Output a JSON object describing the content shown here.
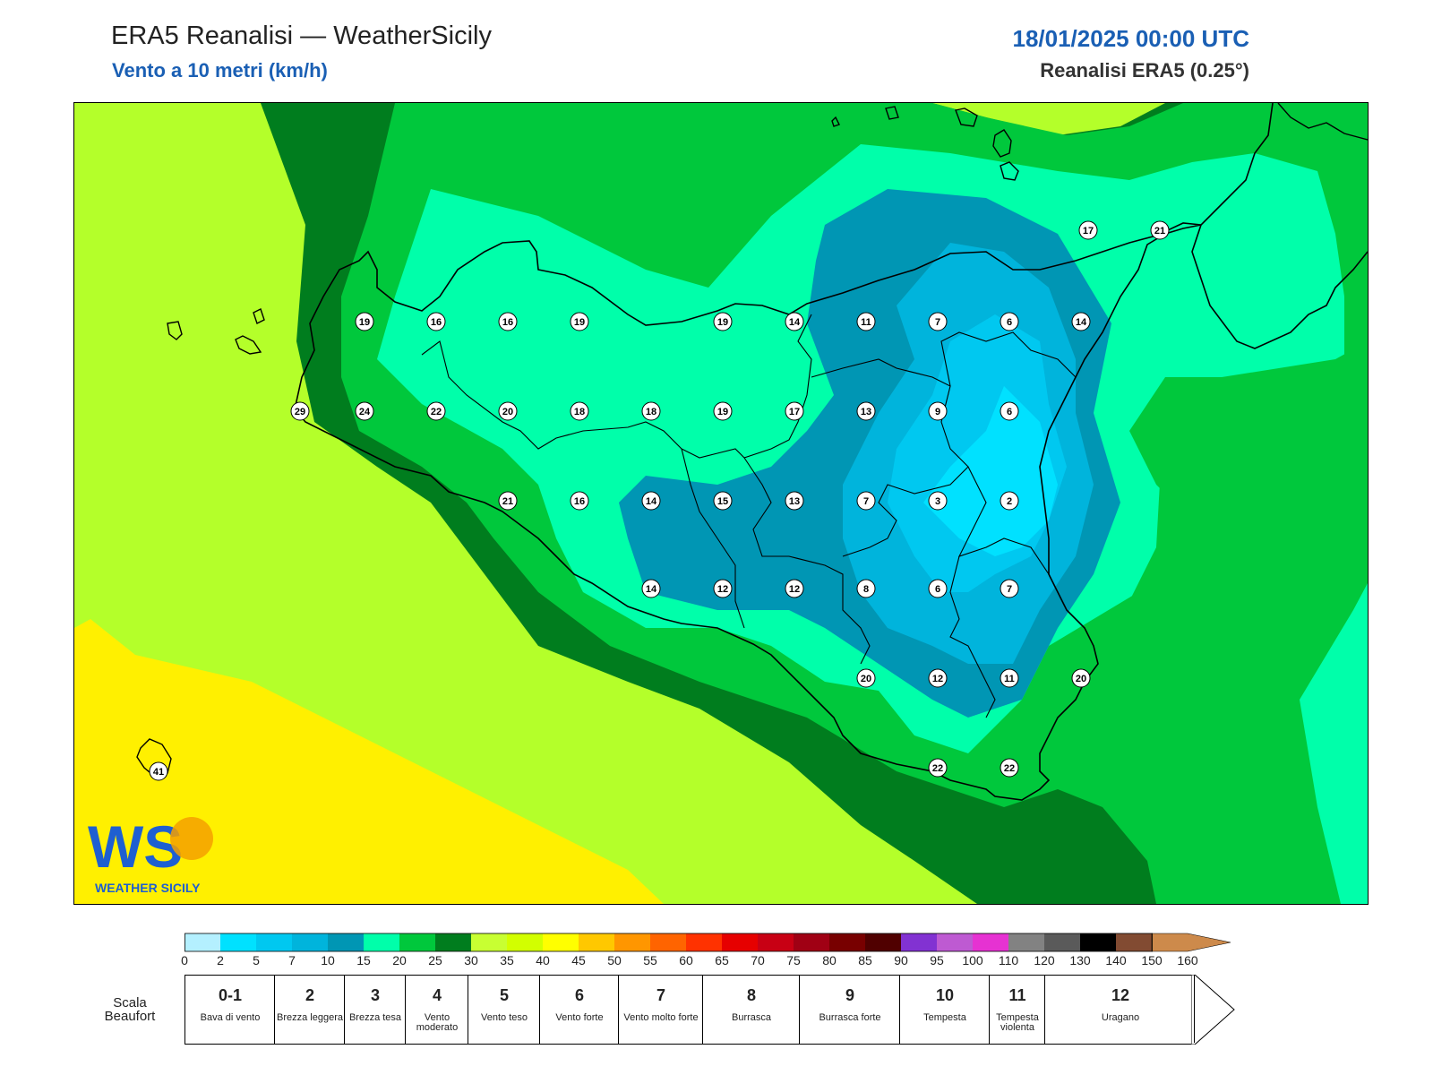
{
  "header": {
    "title": "ERA5 Reanalisi — WeatherSicily",
    "subtitle": "Vento a 10 metri (km/h)",
    "datetime": "18/01/2025 00:00 UTC",
    "source": "Reanalisi ERA5 (0.25°)"
  },
  "logo": {
    "text": "WEATHER SICILY",
    "monogram": "WS"
  },
  "stations": [
    {
      "v": "19",
      "c": 0
    },
    {
      "v": "16",
      "c": 1
    },
    {
      "v": "16",
      "c": 2
    },
    {
      "v": "19",
      "c": 3
    },
    {
      "v": "19",
      "c": 5
    },
    {
      "v": "14",
      "c": 6
    },
    {
      "v": "11",
      "c": 7
    },
    {
      "v": "7",
      "c": 8
    },
    {
      "v": "6",
      "c": 9
    },
    {
      "v": "14",
      "c": 10
    },
    {
      "v": "29",
      "c": -1
    },
    {
      "v": "24",
      "c": 0
    },
    {
      "v": "22",
      "c": 1
    },
    {
      "v": "20",
      "c": 2
    },
    {
      "v": "18",
      "c": 3
    },
    {
      "v": "18",
      "c": 4
    },
    {
      "v": "19",
      "c": 5
    },
    {
      "v": "17",
      "c": 6
    },
    {
      "v": "13",
      "c": 7
    },
    {
      "v": "9",
      "c": 8
    },
    {
      "v": "6",
      "c": 9
    },
    {
      "v": "21",
      "c": 2
    },
    {
      "v": "16",
      "c": 3
    },
    {
      "v": "14",
      "c": 4
    },
    {
      "v": "15",
      "c": 5
    },
    {
      "v": "13",
      "c": 6
    },
    {
      "v": "7",
      "c": 7
    },
    {
      "v": "3",
      "c": 8
    },
    {
      "v": "2",
      "c": 9
    },
    {
      "v": "14",
      "c": 4
    },
    {
      "v": "12",
      "c": 5
    },
    {
      "v": "12",
      "c": 6
    },
    {
      "v": "8",
      "c": 7
    },
    {
      "v": "6",
      "c": 8
    },
    {
      "v": "7",
      "c": 9
    },
    {
      "v": "20",
      "c": 7
    },
    {
      "v": "12",
      "c": 8
    },
    {
      "v": "11",
      "c": 9
    },
    {
      "v": "20",
      "c": 10
    },
    {
      "v": "22",
      "c": 8
    },
    {
      "v": "22",
      "c": 9
    },
    {
      "v": "17",
      "c": 10
    },
    {
      "v": "21",
      "c": 11
    },
    {
      "v": "41",
      "c": -3
    }
  ],
  "colorbar": {
    "ticks": [
      "0",
      "2",
      "5",
      "7",
      "10",
      "15",
      "20",
      "25",
      "30",
      "35",
      "40",
      "45",
      "50",
      "55",
      "60",
      "65",
      "70",
      "75",
      "80",
      "85",
      "90",
      "95",
      "100",
      "110",
      "120",
      "130",
      "140",
      "150",
      "160"
    ],
    "colors": [
      "#b4f0ff",
      "#00e1ff",
      "#00c8f0",
      "#00b4dc",
      "#0096b4",
      "#00ffaa",
      "#00c83c",
      "#007d1e",
      "#c8ff32",
      "#d2ff00",
      "#ffff00",
      "#ffc800",
      "#ff9600",
      "#ff6400",
      "#ff3200",
      "#e60000",
      "#c80014",
      "#a00014",
      "#780000",
      "#500000",
      "#8232d2",
      "#be5ad2",
      "#e632d2",
      "#828282",
      "#5a5a5a",
      "#000000",
      "#824b32",
      "#cd8a4b"
    ]
  },
  "beaufort": {
    "label": "Scala Beaufort",
    "levels": [
      {
        "num": "0-1",
        "desc": "Bava di vento"
      },
      {
        "num": "2",
        "desc": "Brezza leggera"
      },
      {
        "num": "3",
        "desc": "Brezza tesa"
      },
      {
        "num": "4",
        "desc": "Vento moderato"
      },
      {
        "num": "5",
        "desc": "Vento teso"
      },
      {
        "num": "6",
        "desc": "Vento forte"
      },
      {
        "num": "7",
        "desc": "Vento molto forte"
      },
      {
        "num": "8",
        "desc": "Burrasca"
      },
      {
        "num": "9",
        "desc": "Burrasca forte"
      },
      {
        "num": "10",
        "desc": "Tempesta"
      },
      {
        "num": "11",
        "desc": "Tempesta violenta"
      },
      {
        "num": "12",
        "desc": "Uragano"
      }
    ]
  }
}
